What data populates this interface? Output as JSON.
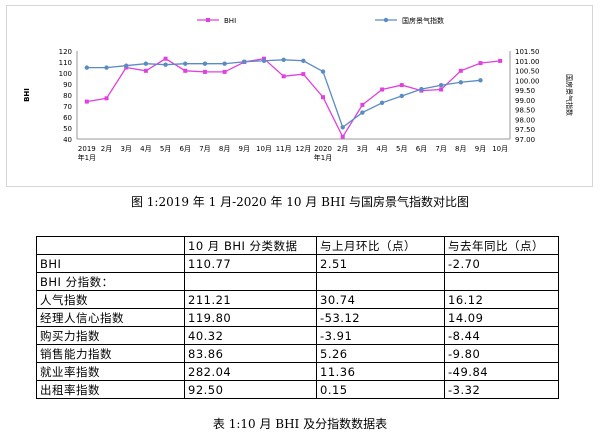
{
  "chart_data": {
    "type": "line",
    "legend_placement": "top",
    "grid": false,
    "categories": [
      [
        "2019",
        "年1月"
      ],
      [
        "2月"
      ],
      [
        "3月"
      ],
      [
        "4月"
      ],
      [
        "5月"
      ],
      [
        "6月"
      ],
      [
        "7月"
      ],
      [
        "8月"
      ],
      [
        "9月"
      ],
      [
        "10月"
      ],
      [
        "11月"
      ],
      [
        "12月"
      ],
      [
        "2020",
        "年1月"
      ],
      [
        "2月"
      ],
      [
        "3月"
      ],
      [
        "4月"
      ],
      [
        "5月"
      ],
      [
        "6月"
      ],
      [
        "7月"
      ],
      [
        "8月"
      ],
      [
        "9月"
      ],
      [
        "10月"
      ]
    ],
    "ylabel_left": "BHI",
    "ylabel_right": "国房景气指数",
    "left_axis": {
      "min": 40,
      "max": 120,
      "ticks": [
        40,
        50,
        60,
        70,
        80,
        90,
        100,
        110,
        120
      ]
    },
    "right_axis": {
      "min": 97.0,
      "max": 101.5,
      "ticks": [
        "97.00",
        "97.50",
        "98.00",
        "98.50",
        "99.00",
        "99.50",
        "100.00",
        "100.50",
        "101.00",
        "101.50"
      ]
    },
    "series": [
      {
        "name": "BHI",
        "axis": "left",
        "color": "#e040e0",
        "marker": "square",
        "values": [
          74,
          77,
          105,
          102,
          113,
          102,
          101,
          101,
          110,
          113,
          97,
          99,
          78,
          42,
          71,
          85,
          89,
          84,
          85,
          102,
          109,
          111
        ]
      },
      {
        "name": "国房景气指数",
        "axis": "right",
        "color": "#5a8cc4",
        "marker": "circle",
        "values": [
          100.65,
          100.65,
          100.75,
          100.85,
          100.8,
          100.85,
          100.85,
          100.85,
          100.95,
          101.0,
          101.05,
          101.0,
          100.45,
          97.6,
          98.35,
          98.85,
          99.2,
          99.55,
          99.75,
          99.9,
          100.0,
          null
        ]
      }
    ]
  },
  "chart_caption": "图 1:2019 年 1 月-2020 年 10 月 BHI 与国房景气指数对比图",
  "table": {
    "header": [
      "",
      "10 月 BHI 分类数据",
      "与上月环比（点）",
      "与去年同比（点）"
    ],
    "rows": [
      {
        "label": "BHI",
        "values": [
          "110.77",
          "2.51",
          "-2.70"
        ]
      },
      {
        "label": "BHI 分指数：",
        "values": [
          "",
          "",
          ""
        ]
      },
      {
        "label": "人气指数",
        "values": [
          "211.21",
          "30.74",
          "16.12"
        ]
      },
      {
        "label": "经理人信心指数",
        "values": [
          "119.80",
          "-53.12",
          "14.09"
        ]
      },
      {
        "label": "购买力指数",
        "values": [
          "40.32",
          "-3.91",
          "-8.44"
        ]
      },
      {
        "label": "销售能力指数",
        "values": [
          "83.86",
          "5.26",
          "-9.80"
        ]
      },
      {
        "label": "就业率指数",
        "values": [
          "282.04",
          "11.36",
          "-49.84"
        ]
      },
      {
        "label": "出租率指数",
        "values": [
          "92.50",
          "0.15",
          "-3.32"
        ]
      }
    ]
  },
  "table_caption": "表 1:10 月 BHI 及分指数数据表"
}
